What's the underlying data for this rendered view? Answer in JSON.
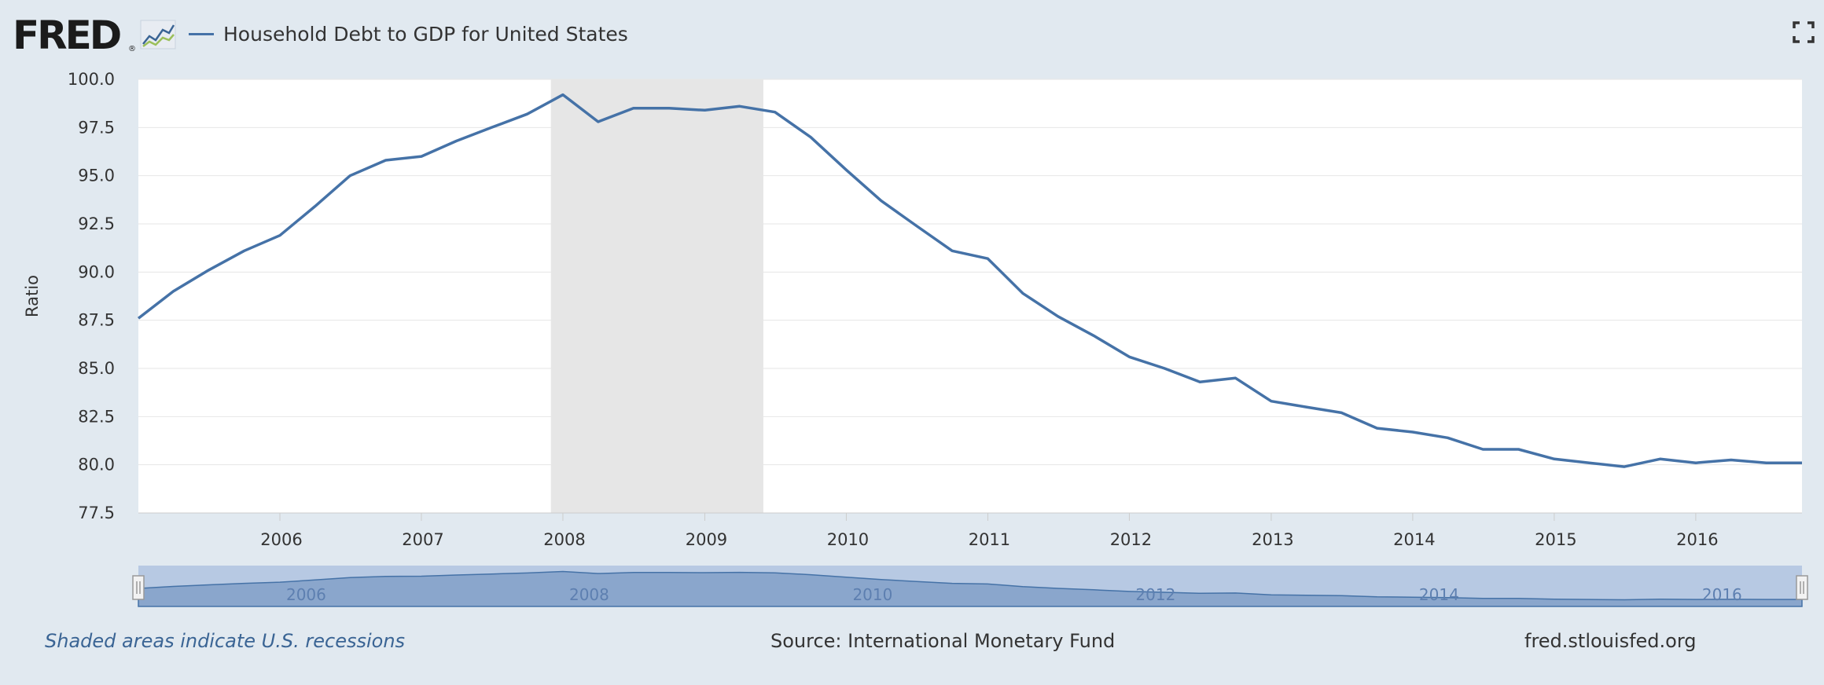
{
  "header": {
    "logo_text": "FRED",
    "logo_reg": "®",
    "logo_icon": "mini-line-chart-icon",
    "fullscreen_icon": "fullscreen-expand-icon"
  },
  "footer": {
    "recession_note": "Shaded areas indicate U.S. recessions",
    "source": "Source: International Monetary Fund",
    "site": "fred.stlouisfed.org"
  },
  "colors": {
    "series": "#4572a7",
    "recession": "#e6e6e6",
    "plot_background": "#ffffff",
    "page_background": "#e1e9f0",
    "navigator_band": "#b7c9e3",
    "navigator_area": "#8aa6cc"
  },
  "chart_data": {
    "type": "line",
    "title": "",
    "ylabel": "Ratio",
    "xlabel": "",
    "ylim": [
      77.5,
      100.0
    ],
    "xlim": [
      "2005-01-01",
      "2016-10-01"
    ],
    "yticks": [
      "77.5",
      "80.0",
      "82.5",
      "85.0",
      "87.5",
      "90.0",
      "92.5",
      "95.0",
      "97.5",
      "100.0"
    ],
    "xticks": [
      "2006",
      "2007",
      "2008",
      "2009",
      "2010",
      "2011",
      "2012",
      "2013",
      "2014",
      "2015",
      "2016"
    ],
    "navigator_ticks": [
      "2006",
      "2008",
      "2010",
      "2012",
      "2014",
      "2016"
    ],
    "grid": true,
    "legend": "top-left",
    "recessions": [
      {
        "start": "2007-12-01",
        "end": "2009-06-01"
      }
    ],
    "series": [
      {
        "name": "Household Debt to GDP for United States",
        "x": [
          "2005-01-01",
          "2005-04-01",
          "2005-07-01",
          "2005-10-01",
          "2006-01-01",
          "2006-04-01",
          "2006-07-01",
          "2006-10-01",
          "2007-01-01",
          "2007-04-01",
          "2007-07-01",
          "2007-10-01",
          "2008-01-01",
          "2008-04-01",
          "2008-07-01",
          "2008-10-01",
          "2009-01-01",
          "2009-04-01",
          "2009-07-01",
          "2009-10-01",
          "2010-01-01",
          "2010-04-01",
          "2010-07-01",
          "2010-10-01",
          "2011-01-01",
          "2011-04-01",
          "2011-07-01",
          "2011-10-01",
          "2012-01-01",
          "2012-04-01",
          "2012-07-01",
          "2012-10-01",
          "2013-01-01",
          "2013-04-01",
          "2013-07-01",
          "2013-10-01",
          "2014-01-01",
          "2014-04-01",
          "2014-07-01",
          "2014-10-01",
          "2015-01-01",
          "2015-04-01",
          "2015-07-01",
          "2015-10-01",
          "2016-01-01",
          "2016-04-01",
          "2016-07-01",
          "2016-10-01"
        ],
        "values": [
          87.6,
          89.0,
          90.1,
          91.1,
          91.9,
          93.4,
          95.0,
          95.8,
          96.0,
          96.8,
          97.5,
          98.2,
          99.2,
          97.8,
          98.5,
          98.5,
          98.4,
          98.6,
          98.3,
          97.0,
          95.3,
          93.7,
          92.4,
          91.1,
          90.7,
          88.9,
          87.7,
          86.7,
          85.6,
          85.0,
          84.3,
          84.5,
          83.3,
          83.0,
          82.7,
          81.9,
          81.7,
          81.4,
          80.8,
          80.8,
          80.3,
          80.1,
          79.9,
          80.3,
          80.1,
          80.25,
          80.1,
          80.1
        ]
      }
    ]
  }
}
